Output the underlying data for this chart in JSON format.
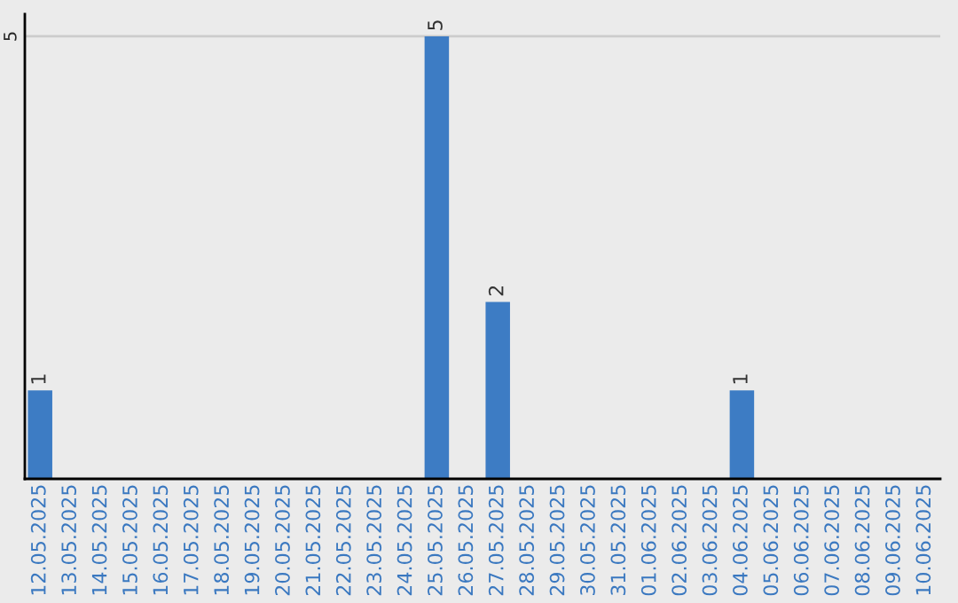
{
  "chart_data": {
    "type": "bar",
    "categories": [
      "12.05.2025",
      "13.05.2025",
      "14.05.2025",
      "15.05.2025",
      "16.05.2025",
      "17.05.2025",
      "18.05.2025",
      "19.05.2025",
      "20.05.2025",
      "21.05.2025",
      "22.05.2025",
      "23.05.2025",
      "24.05.2025",
      "25.05.2025",
      "26.05.2025",
      "27.05.2025",
      "28.05.2025",
      "29.05.2025",
      "30.05.2025",
      "31.05.2025",
      "01.06.2025",
      "02.06.2025",
      "03.06.2025",
      "04.06.2025",
      "05.06.2025",
      "06.06.2025",
      "07.06.2025",
      "08.06.2025",
      "09.06.2025",
      "10.06.2025"
    ],
    "values": [
      1,
      0,
      0,
      0,
      0,
      0,
      0,
      0,
      0,
      0,
      0,
      0,
      0,
      5,
      0,
      2,
      0,
      0,
      0,
      0,
      0,
      0,
      0,
      1,
      0,
      0,
      0,
      0,
      0,
      0
    ],
    "value_labels": [
      "1",
      null,
      null,
      null,
      null,
      null,
      null,
      null,
      null,
      null,
      null,
      null,
      null,
      "5",
      null,
      "2",
      null,
      null,
      null,
      null,
      null,
      null,
      null,
      "1",
      null,
      null,
      null,
      null,
      null,
      null
    ],
    "color": "#3d7cc4",
    "ylim": [
      0,
      5.25
    ],
    "yticks": [
      5
    ],
    "grid": "y"
  }
}
